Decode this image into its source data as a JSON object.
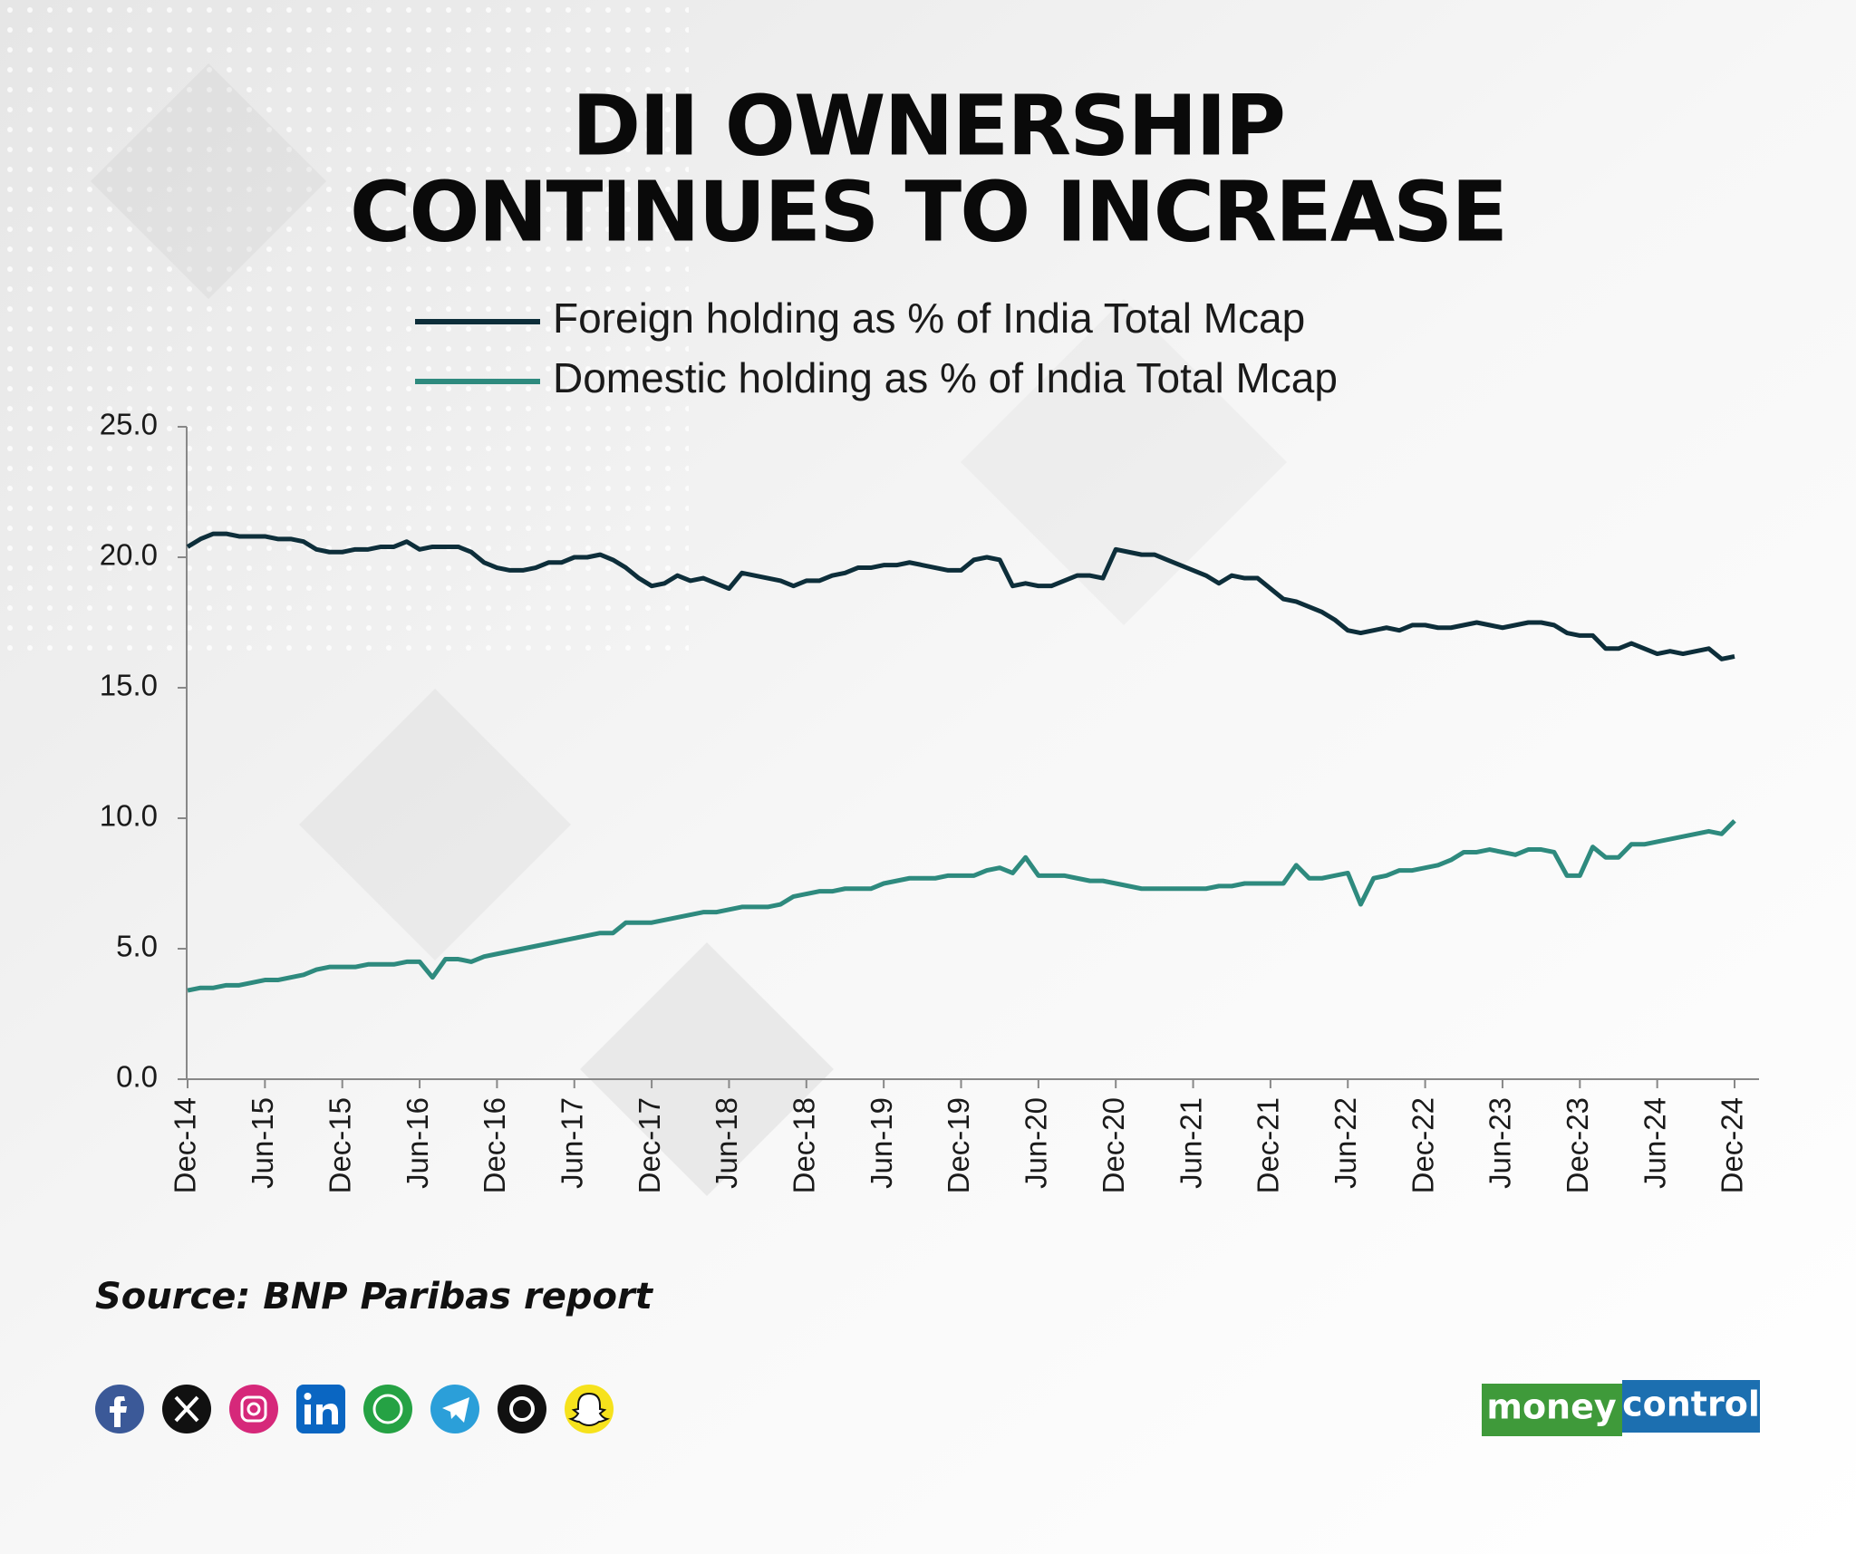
{
  "title_lines": [
    "DII OWNERSHIP",
    "CONTINUES TO INCREASE"
  ],
  "chart_data": {
    "type": "line",
    "categories": [
      "Dec-14",
      null,
      null,
      null,
      null,
      null,
      "Jun-15",
      null,
      null,
      null,
      null,
      null,
      "Dec-15",
      null,
      null,
      null,
      null,
      null,
      "Jun-16",
      null,
      null,
      null,
      null,
      null,
      "Dec-16",
      null,
      null,
      null,
      null,
      null,
      "Jun-17",
      null,
      null,
      null,
      null,
      null,
      "Dec-17",
      null,
      null,
      null,
      null,
      null,
      "Jun-18",
      null,
      null,
      null,
      null,
      null,
      "Dec-18",
      null,
      null,
      null,
      null,
      null,
      "Jun-19",
      null,
      null,
      null,
      null,
      null,
      "Dec-19",
      null,
      null,
      null,
      null,
      null,
      "Jun-20",
      null,
      null,
      null,
      null,
      null,
      "Dec-20",
      null,
      null,
      null,
      null,
      null,
      "Jun-21",
      null,
      null,
      null,
      null,
      null,
      "Dec-21",
      null,
      null,
      null,
      null,
      null,
      "Jun-22",
      null,
      null,
      null,
      null,
      null,
      "Dec-22",
      null,
      null,
      null,
      null,
      null,
      "Jun-23",
      null,
      null,
      null,
      null,
      null,
      "Dec-23",
      null,
      null,
      null,
      null,
      null,
      "Jun-24",
      null,
      null,
      null,
      null,
      null,
      "Dec-24"
    ],
    "series": [
      {
        "name": "Foreign holding as % of India Total Mcap",
        "color": "#0d2e3a",
        "values": [
          20.4,
          20.7,
          20.9,
          20.9,
          20.8,
          20.8,
          20.8,
          20.7,
          20.7,
          20.6,
          20.3,
          20.2,
          20.2,
          20.3,
          20.3,
          20.4,
          20.4,
          20.6,
          20.3,
          20.4,
          20.4,
          20.4,
          20.2,
          19.8,
          19.6,
          19.5,
          19.5,
          19.6,
          19.8,
          19.8,
          20.0,
          20.0,
          20.1,
          19.9,
          19.6,
          19.2,
          18.9,
          19.0,
          19.3,
          19.1,
          19.2,
          19.0,
          18.8,
          19.4,
          19.3,
          19.2,
          19.1,
          18.9,
          19.1,
          19.1,
          19.3,
          19.4,
          19.6,
          19.6,
          19.7,
          19.7,
          19.8,
          19.7,
          19.6,
          19.5,
          19.5,
          19.9,
          20.0,
          19.9,
          18.9,
          19.0,
          18.9,
          18.9,
          19.1,
          19.3,
          19.3,
          19.2,
          20.3,
          20.2,
          20.1,
          20.1,
          19.9,
          19.7,
          19.5,
          19.3,
          19.0,
          19.3,
          19.2,
          19.2,
          18.8,
          18.4,
          18.3,
          18.1,
          17.9,
          17.6,
          17.2,
          17.1,
          17.2,
          17.3,
          17.2,
          17.4,
          17.4,
          17.3,
          17.3,
          17.4,
          17.5,
          17.4,
          17.3,
          17.4,
          17.5,
          17.5,
          17.4,
          17.1,
          17.0,
          17.0,
          16.5,
          16.5,
          16.7,
          16.5,
          16.3,
          16.4,
          16.3,
          16.4,
          16.5,
          16.1,
          16.2
        ]
      },
      {
        "name": "Domestic holding as % of India Total Mcap",
        "color": "#2e8a7e",
        "values": [
          3.4,
          3.5,
          3.5,
          3.6,
          3.6,
          3.7,
          3.8,
          3.8,
          3.9,
          4.0,
          4.2,
          4.3,
          4.3,
          4.3,
          4.4,
          4.4,
          4.4,
          4.5,
          4.5,
          3.9,
          4.6,
          4.6,
          4.5,
          4.7,
          4.8,
          4.9,
          5.0,
          5.1,
          5.2,
          5.3,
          5.4,
          5.5,
          5.6,
          5.6,
          6.0,
          6.0,
          6.0,
          6.1,
          6.2,
          6.3,
          6.4,
          6.4,
          6.5,
          6.6,
          6.6,
          6.6,
          6.7,
          7.0,
          7.1,
          7.2,
          7.2,
          7.3,
          7.3,
          7.3,
          7.5,
          7.6,
          7.7,
          7.7,
          7.7,
          7.8,
          7.8,
          7.8,
          8.0,
          8.1,
          7.9,
          8.5,
          7.8,
          7.8,
          7.8,
          7.7,
          7.6,
          7.6,
          7.5,
          7.4,
          7.3,
          7.3,
          7.3,
          7.3,
          7.3,
          7.3,
          7.4,
          7.4,
          7.5,
          7.5,
          7.5,
          7.5,
          8.2,
          7.7,
          7.7,
          7.8,
          7.9,
          6.7,
          7.7,
          7.8,
          8.0,
          8.0,
          8.1,
          8.2,
          8.4,
          8.7,
          8.7,
          8.8,
          8.7,
          8.6,
          8.8,
          8.8,
          8.7,
          7.8,
          7.8,
          8.9,
          8.5,
          8.5,
          9.0,
          9.0,
          9.1,
          9.2,
          9.3,
          9.4,
          9.5,
          9.4,
          9.9
        ]
      }
    ],
    "ylim": [
      0,
      25
    ],
    "yticks": [
      {
        "value": 0,
        "label": "0.0"
      },
      {
        "value": 5,
        "label": "5.0"
      },
      {
        "value": 10,
        "label": "10.0"
      },
      {
        "value": 15,
        "label": "15.0"
      },
      {
        "value": 20,
        "label": "20.0"
      },
      {
        "value": 25,
        "label": "25.0"
      }
    ],
    "grid": false
  },
  "source": "Source: BNP Paribas report",
  "logo": {
    "left": "money",
    "right": "control"
  }
}
